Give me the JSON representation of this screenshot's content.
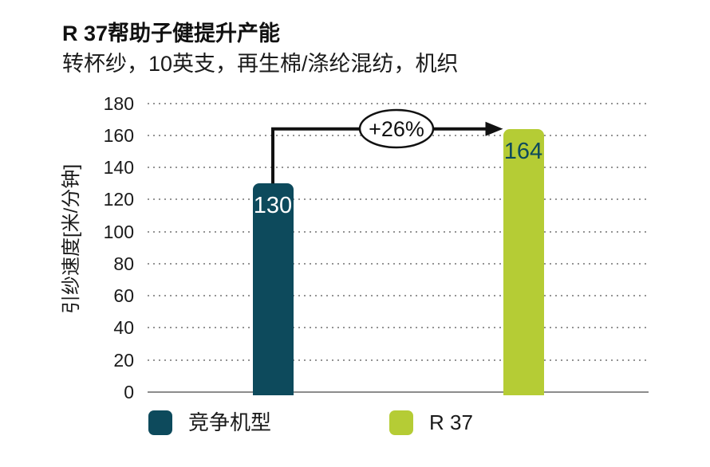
{
  "header": {
    "title": "R 37帮助子健提升产能",
    "subtitle": "转杯纱，10英支，再生棉/涤纶混纺，机织"
  },
  "chart_data": {
    "type": "bar",
    "title": "R 37帮助子健提升产能",
    "subtitle": "转杯纱，10英支，再生棉/涤纶混纺，机织",
    "categories": [
      "竞争机型",
      "R 37"
    ],
    "values": [
      130,
      164
    ],
    "value_labels": [
      "130",
      "164"
    ],
    "bar_colors": [
      "#0d4a5c",
      "#b5cc35"
    ],
    "value_label_colors": [
      "#ffffff",
      "#0d4a5c"
    ],
    "xlabel": "",
    "ylabel": "引纱速度[米/分钟]",
    "ylim": [
      0,
      180
    ],
    "yticks": [
      0,
      20,
      40,
      60,
      80,
      100,
      120,
      140,
      160,
      180
    ],
    "grid": "horizontal-dotted",
    "gridline_color": "#949494",
    "axis_color": "#8c8c8c",
    "annotation": {
      "label": "+26%",
      "from_value": 130,
      "to_value": 164,
      "shape": "ellipse-on-arrow",
      "arrow_color": "#111111",
      "badge_fill": "#ffffff",
      "badge_stroke": "#111111"
    },
    "legend": [
      {
        "label": "竞争机型",
        "color": "#0d4a5c"
      },
      {
        "label": "R 37",
        "color": "#b5cc35"
      }
    ],
    "legend_position": "bottom"
  },
  "colors": {
    "background": "#ffffff",
    "accent_dark": "#0d4a5c",
    "accent_green": "#b5cc35",
    "text": "#1a1a1a"
  }
}
